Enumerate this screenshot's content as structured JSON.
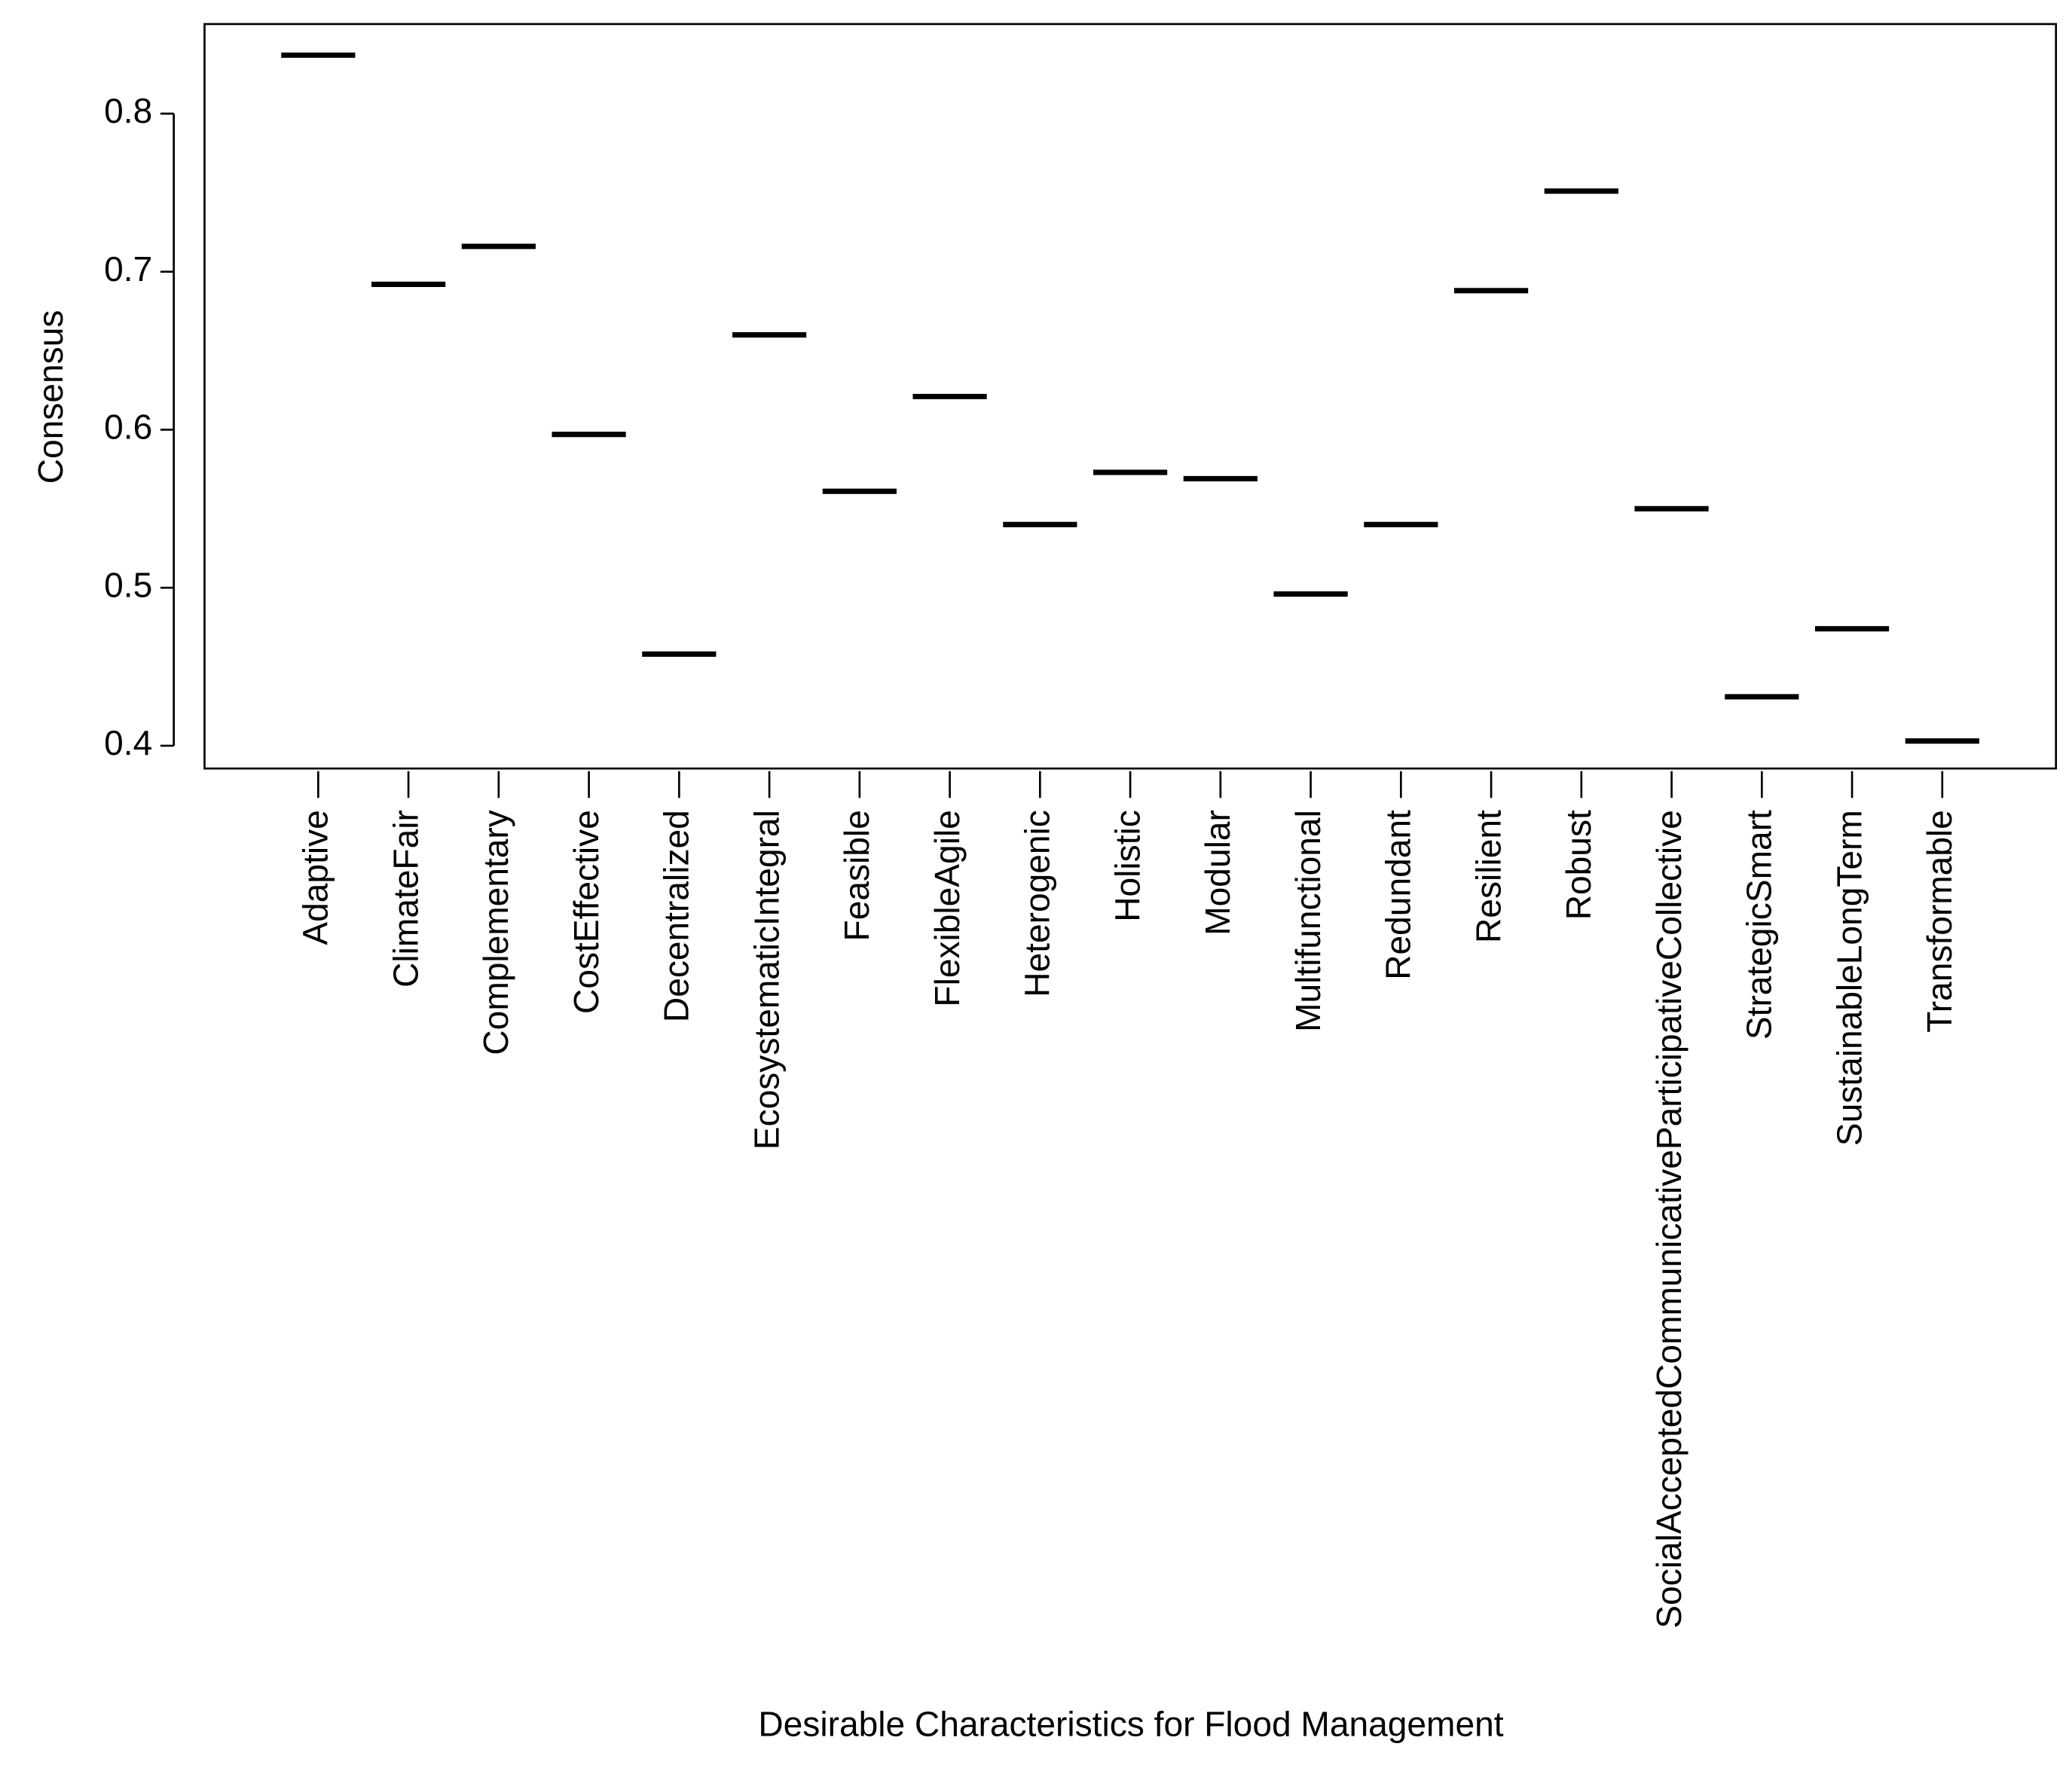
{
  "chart_data": {
    "type": "strip",
    "x_label": "Desirable Characteristics for Flood Management",
    "y_label": "Consensus",
    "categories": [
      "Adaptive",
      "ClimateFair",
      "Complementary",
      "CostEffective",
      "Decentralized",
      "EcosystematicIntegral",
      "Feasible",
      "FlexibleAgile",
      "Heterogenic",
      "Holistic",
      "Modular",
      "Multifunctional",
      "Redundant",
      "Resilient",
      "Robust",
      "SocialAcceptedCommunicativeParticipativeCollective",
      "StrategicSmart",
      "SustainableLongTerm",
      "Transformable"
    ],
    "values": [
      0.837,
      0.692,
      0.716,
      0.597,
      0.458,
      0.66,
      0.561,
      0.621,
      0.54,
      0.573,
      0.569,
      0.496,
      0.54,
      0.688,
      0.751,
      0.55,
      0.431,
      0.474,
      0.403
    ],
    "color": "#000000",
    "ylim": [
      0.3856,
      0.8567
    ],
    "yticks": [
      0.4,
      0.5,
      0.6,
      0.7,
      0.8
    ]
  }
}
